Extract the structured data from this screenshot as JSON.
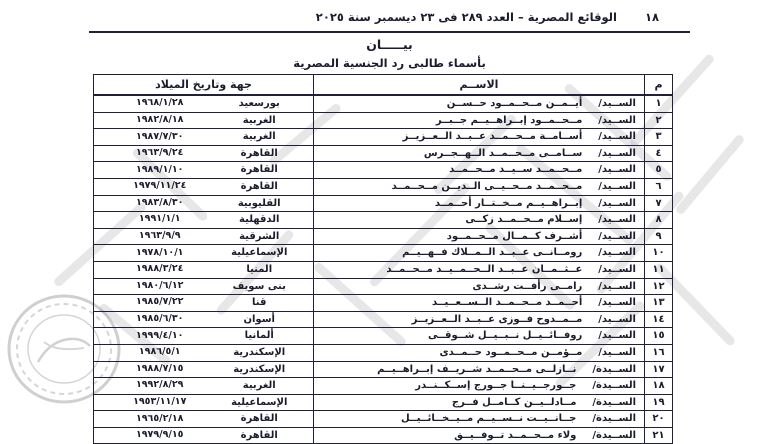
{
  "colors": {
    "ink": "#1b1b2e",
    "border": "#20203a",
    "watermark": "#b0b0b0"
  },
  "page": {
    "number": "١٨",
    "header": "الوقائع المصرية – العدد ٢٨٩ فى ٢٣ ديسمبر سنة ٢٠٢٥",
    "title": "بيـــــان",
    "subtitle": "بأسماء طالبى رد الجنسية المصرية"
  },
  "table": {
    "headers": {
      "index": "م",
      "name": "الاســم",
      "birth": "جهة وتاريخ الميلاد"
    },
    "rows": [
      {
        "no": "١",
        "title": "الســيد/",
        "name": "أيــمــن مــحــمــود حــســن",
        "place": "بورسعيد",
        "date": "١٩٦٨/١/٢٨"
      },
      {
        "no": "٢",
        "title": "الســيد/",
        "name": "مــحــمــود إبــراهــيــم جــبــر",
        "place": "الغربية",
        "date": "١٩٨٢/٨/١٨"
      },
      {
        "no": "٣",
        "title": "الســيد/",
        "name": "أســامــة مــحــمــد عــبــد الــعــزيــز",
        "place": "الغربية",
        "date": "١٩٨٧/٧/٣٠"
      },
      {
        "no": "٤",
        "title": "الســيد/",
        "name": "ســامــى مــحــمــد الــهــجــرس",
        "place": "القاهرة",
        "date": "١٩٦٣/٩/٢٤"
      },
      {
        "no": "٥",
        "title": "الســيد/",
        "name": "مــحــمــد ســيــد مــحــمــد",
        "place": "القاهرة",
        "date": "١٩٨٩/١/١٠"
      },
      {
        "no": "٦",
        "title": "الســيد/",
        "name": "مــحــمــد مــحــيــى الــديــن مــحــمــد",
        "place": "القاهرة",
        "date": "١٩٧٩/١١/٢٤"
      },
      {
        "no": "٧",
        "title": "الســيد/",
        "name": "إبــراهــيــم مــخــتــار أحــمــد",
        "place": "القليوبية",
        "date": "١٩٨٣/٨/٣٠"
      },
      {
        "no": "٨",
        "title": "الســيد/",
        "name": "إســلام مــحــمــد زكــى",
        "place": "الدقهلية",
        "date": "١٩٩١/١/١"
      },
      {
        "no": "٩",
        "title": "الســيد/",
        "name": "أشــرف كــمــال مــحــمــود",
        "place": "الشرقية",
        "date": "١٩٦٣/٩/٩"
      },
      {
        "no": "١٠",
        "title": "الســيد/",
        "name": "رومــانــى عــبــد الــمــلاك فــهــيــم",
        "place": "الإسماعيلية",
        "date": "١٩٧٨/١٠/١"
      },
      {
        "no": "١١",
        "title": "الســيد/",
        "name": "عــثــمــان عــبــد الــحــمــيــد مــحــمــد",
        "place": "المنيا",
        "date": "١٩٨٨/٣/٢٤"
      },
      {
        "no": "١٢",
        "title": "الســيد/",
        "name": "رامــى رأفــت رشــدى",
        "place": "بنى سويف",
        "date": "١٩٨٠/٦/١٢"
      },
      {
        "no": "١٣",
        "title": "الســيد/",
        "name": "أحــمــد مــحــمــد الــســعــيــد",
        "place": "قنا",
        "date": "١٩٨٥/٧/٢٢"
      },
      {
        "no": "١٤",
        "title": "الســيد/",
        "name": "مــمــدوح فــوزى عــبــد الــعــزيــز",
        "place": "أسوان",
        "date": "١٩٨٥/٦/٣٠"
      },
      {
        "no": "١٥",
        "title": "الســيد/",
        "name": "روفــائــيــل نــبــيــل شــوقــى",
        "place": "ألمانيا",
        "date": "١٩٩٩/٤/١٠"
      },
      {
        "no": "١٦",
        "title": "الســيد/",
        "name": "مــؤمــن مــحــمــود حــمــدى",
        "place": "الإسكندرية",
        "date": "١٩٨٦/٥/١"
      },
      {
        "no": "١٧",
        "title": "الســيدة/",
        "name": "نــازلــى مــحــمــد شــريــف إبــراهــيــم",
        "place": "الإسكندرية",
        "date": "١٩٨٨/٧/١٥"
      },
      {
        "no": "١٨",
        "title": "الســيدة/",
        "name": "جــورجــيــنــا جــورج إســكــنــدر",
        "place": "الغربية",
        "date": "١٩٩٢/٨/٢٩"
      },
      {
        "no": "١٩",
        "title": "الســيدة/",
        "name": "مــادلــيــن كــامــل فــرج",
        "place": "الإسماعيلية",
        "date": "١٩٥٣/١١/١٧"
      },
      {
        "no": "٢٠",
        "title": "الســيدة/",
        "name": "جــانــيــت نــســيــم مــيــخــائــيــل",
        "place": "القاهرة",
        "date": "١٩٦٥/٢/١٨"
      },
      {
        "no": "٢١",
        "title": "الســيدة/",
        "name": "ولاء مــحــمــد تــوفــيــق",
        "place": "القاهرة",
        "date": "١٩٧٩/٩/١٥"
      }
    ]
  }
}
